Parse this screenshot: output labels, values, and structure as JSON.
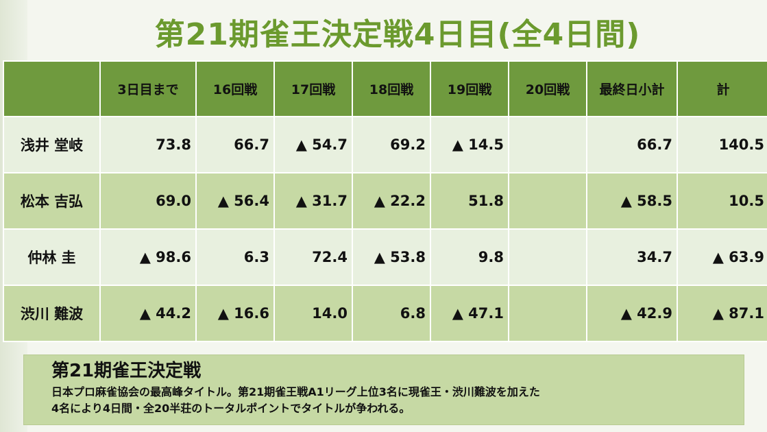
{
  "title": "第21期雀王決定戦4日目(全4日間)",
  "table": {
    "headers": [
      "",
      "3日目まで",
      "16回戦",
      "17回戦",
      "18回戦",
      "19回戦",
      "20回戦",
      "最終日小計",
      "計"
    ],
    "rows": [
      {
        "name": "浅井 堂岐",
        "cells": [
          "73.8",
          "66.7",
          "▲ 54.7",
          "69.2",
          "▲ 14.5",
          "",
          "66.7",
          "140.5"
        ]
      },
      {
        "name": "松本 吉弘",
        "cells": [
          "69.0",
          "▲ 56.4",
          "▲ 31.7",
          "▲ 22.2",
          "51.8",
          "",
          "▲ 58.5",
          "10.5"
        ]
      },
      {
        "name": "仲林 圭",
        "cells": [
          "▲ 98.6",
          "6.3",
          "72.4",
          "▲ 53.8",
          "9.8",
          "",
          "34.7",
          "▲ 63.9"
        ]
      },
      {
        "name": "渋川 難波",
        "cells": [
          "▲ 44.2",
          "▲ 16.6",
          "14.0",
          "6.8",
          "▲ 47.1",
          "",
          "▲ 42.9",
          "▲ 87.1"
        ]
      }
    ]
  },
  "info": {
    "heading": "第21期雀王決定戦",
    "line1": "日本プロ麻雀協会の最高峰タイトル。第21期雀王戦A1リーグ上位3名に現雀王・渋川難波を加えた",
    "line2": "4名により4日間・全20半荘のトータルポイントでタイトルが争われる。"
  },
  "colors": {
    "title": "#6b9a2e",
    "header_bg": "#6f9a3e",
    "row_light": "#e8f0df",
    "row_dark": "#c6d9a4"
  }
}
